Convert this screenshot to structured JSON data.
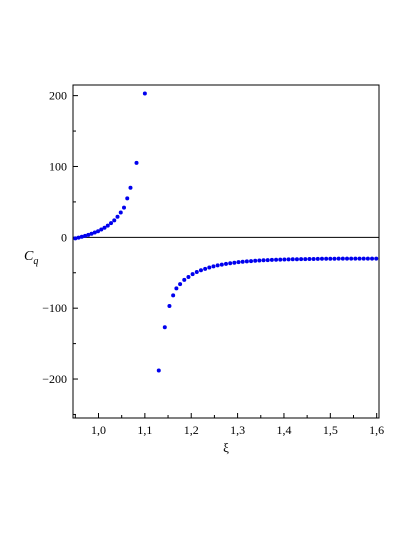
{
  "chart_data": {
    "type": "scatter",
    "title": "",
    "xlabel": "ξ",
    "ylabel_main": "C",
    "ylabel_sub": "q",
    "xlim": [
      0.945,
      1.605
    ],
    "ylim": [
      -255,
      215
    ],
    "x_ticks": [
      1.0,
      1.1,
      1.2,
      1.3,
      1.4,
      1.5,
      1.6
    ],
    "x_tick_labels": [
      "1,0",
      "1,1",
      "1,2",
      "1,3",
      "1,4",
      "1,5",
      "1,6"
    ],
    "y_ticks": [
      200,
      100,
      0,
      -100,
      -200
    ],
    "y_tick_labels": [
      "200",
      "100",
      "0",
      "−100",
      "−200"
    ],
    "zero_line": true,
    "grid": false,
    "point_color": "#0000ee",
    "points": [
      [
        0.95,
        -1.5
      ],
      [
        0.957,
        -0.5
      ],
      [
        0.964,
        0.8
      ],
      [
        0.971,
        2.0
      ],
      [
        0.978,
        3.5
      ],
      [
        0.985,
        5.0
      ],
      [
        0.992,
        6.8
      ],
      [
        0.999,
        8.5
      ],
      [
        1.006,
        11.0
      ],
      [
        1.013,
        13.5
      ],
      [
        1.02,
        16.5
      ],
      [
        1.027,
        20.0
      ],
      [
        1.034,
        24.0
      ],
      [
        1.041,
        29.0
      ],
      [
        1.048,
        35.0
      ],
      [
        1.055,
        42.0
      ],
      [
        1.062,
        55.0
      ],
      [
        1.069,
        70.0
      ],
      [
        1.082,
        105.0
      ],
      [
        1.1,
        203.0
      ],
      [
        1.13,
        -188.0
      ],
      [
        1.143,
        -127.0
      ],
      [
        1.153,
        -97.0
      ],
      [
        1.161,
        -82.0
      ],
      [
        1.168,
        -72.0
      ],
      [
        1.176,
        -66.0
      ],
      [
        1.185,
        -60.0
      ],
      [
        1.194,
        -56.0
      ],
      [
        1.203,
        -52.0
      ],
      [
        1.212,
        -49.0
      ],
      [
        1.221,
        -46.5
      ],
      [
        1.23,
        -44.5
      ],
      [
        1.239,
        -42.5
      ],
      [
        1.248,
        -41.0
      ],
      [
        1.257,
        -39.5
      ],
      [
        1.266,
        -38.5
      ],
      [
        1.275,
        -37.5
      ],
      [
        1.284,
        -36.5
      ],
      [
        1.293,
        -35.8
      ],
      [
        1.302,
        -35.0
      ],
      [
        1.311,
        -34.5
      ],
      [
        1.32,
        -34.0
      ],
      [
        1.329,
        -33.5
      ],
      [
        1.338,
        -33.0
      ],
      [
        1.347,
        -32.7
      ],
      [
        1.356,
        -32.4
      ],
      [
        1.365,
        -32.1
      ],
      [
        1.374,
        -31.9
      ],
      [
        1.383,
        -31.7
      ],
      [
        1.392,
        -31.5
      ],
      [
        1.401,
        -31.3
      ],
      [
        1.41,
        -31.2
      ],
      [
        1.419,
        -31.0
      ],
      [
        1.428,
        -30.9
      ],
      [
        1.437,
        -30.8
      ],
      [
        1.446,
        -30.7
      ],
      [
        1.455,
        -30.6
      ],
      [
        1.464,
        -30.5
      ],
      [
        1.473,
        -30.4
      ],
      [
        1.482,
        -30.3
      ],
      [
        1.491,
        -30.3
      ],
      [
        1.5,
        -30.2
      ],
      [
        1.509,
        -30.2
      ],
      [
        1.518,
        -30.1
      ],
      [
        1.527,
        -30.1
      ],
      [
        1.536,
        -30.0
      ],
      [
        1.545,
        -30.0
      ],
      [
        1.554,
        -30.0
      ],
      [
        1.563,
        -30.0
      ],
      [
        1.572,
        -30.0
      ],
      [
        1.581,
        -30.0
      ],
      [
        1.59,
        -30.0
      ],
      [
        1.599,
        -30.0
      ]
    ]
  }
}
